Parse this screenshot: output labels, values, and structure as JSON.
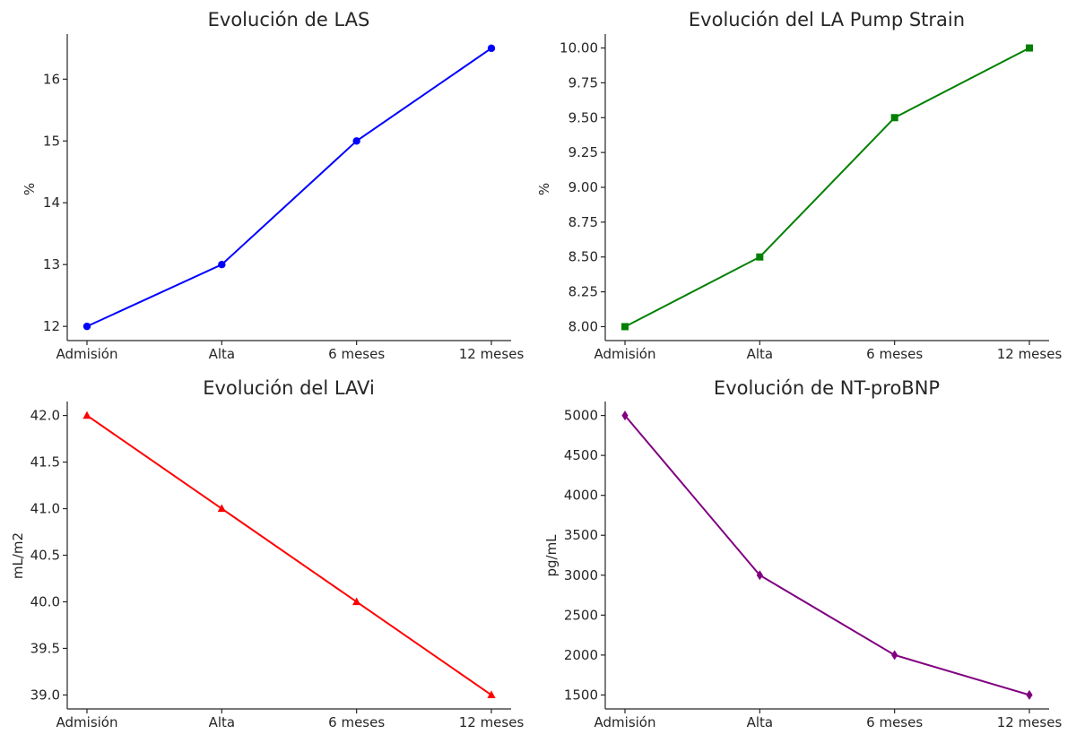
{
  "chart_data": [
    {
      "type": "line",
      "title": "Evolución de LAS",
      "xlabel": "",
      "ylabel": "%",
      "categories": [
        "Admisión",
        "Alta",
        "6 meses",
        "12 meses"
      ],
      "series": [
        {
          "values": [
            12,
            13,
            15,
            16.5
          ]
        }
      ],
      "yticks": [
        "12",
        "13",
        "14",
        "15",
        "16"
      ],
      "ylim": [
        11.77,
        16.73
      ],
      "marker": "circle",
      "color": "#0000ff",
      "grid": false
    },
    {
      "type": "line",
      "title": "Evolución del LA Pump Strain",
      "xlabel": "",
      "ylabel": "%",
      "categories": [
        "Admisión",
        "Alta",
        "6 meses",
        "12 meses"
      ],
      "series": [
        {
          "values": [
            8.0,
            8.5,
            9.5,
            10.0
          ]
        }
      ],
      "yticks": [
        "8.00",
        "8.25",
        "8.50",
        "8.75",
        "9.00",
        "9.25",
        "9.50",
        "9.75",
        "10.00"
      ],
      "ylim": [
        7.9,
        10.1
      ],
      "marker": "square",
      "color": "#008000",
      "grid": false
    },
    {
      "type": "line",
      "title": "Evolución del LAVi",
      "xlabel": "",
      "ylabel": "mL/m2",
      "categories": [
        "Admisión",
        "Alta",
        "6 meses",
        "12 meses"
      ],
      "series": [
        {
          "values": [
            42,
            41,
            40,
            39
          ]
        }
      ],
      "yticks": [
        "39.0",
        "39.5",
        "40.0",
        "40.5",
        "41.0",
        "41.5",
        "42.0"
      ],
      "ylim": [
        38.85,
        42.15
      ],
      "marker": "triangle",
      "color": "#ff0000",
      "grid": false
    },
    {
      "type": "line",
      "title": "Evolución de NT-proBNP",
      "xlabel": "",
      "ylabel": "pg/mL",
      "categories": [
        "Admisión",
        "Alta",
        "6 meses",
        "12 meses"
      ],
      "series": [
        {
          "values": [
            5000,
            3000,
            2000,
            1500
          ]
        }
      ],
      "yticks": [
        "1500",
        "2000",
        "2500",
        "3000",
        "3500",
        "4000",
        "4500",
        "5000"
      ],
      "ylim": [
        1325,
        5175
      ],
      "marker": "diamond",
      "color": "#800080",
      "grid": false
    }
  ]
}
